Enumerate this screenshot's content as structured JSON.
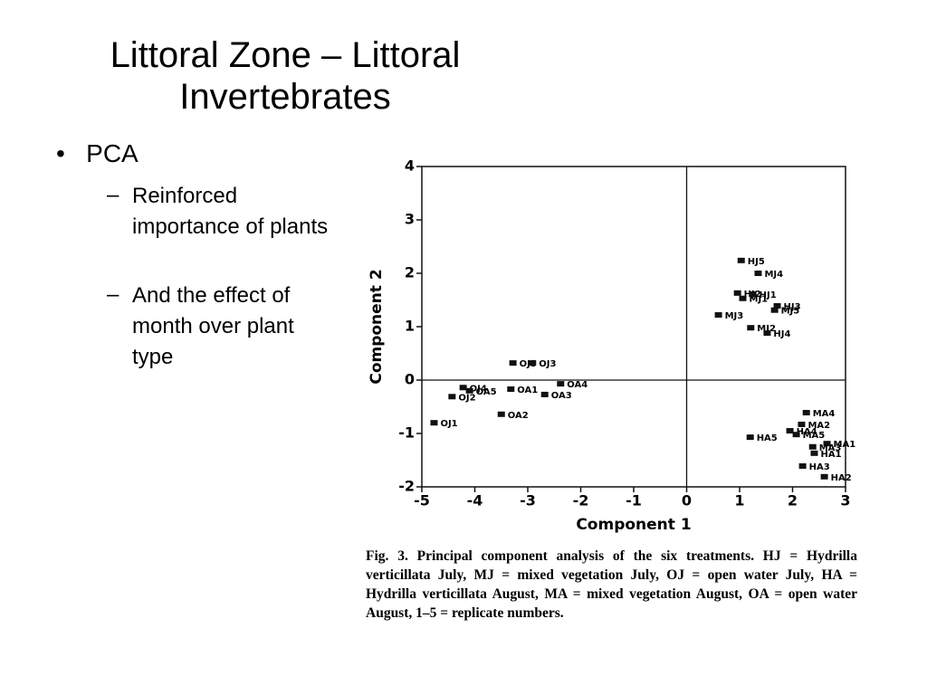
{
  "slide": {
    "title": [
      "Littoral Zone – Littoral",
      "Invertebrates"
    ],
    "bullet": "PCA",
    "sub_bullets": [
      "Reinforced importance of plants",
      "And the effect of month over plant type"
    ],
    "caption": "Fig. 3.   Principal component analysis of the six treatments. HJ = Hydrilla verticillata July, MJ = mixed vegetation July, OJ = open water July, HA = Hydrilla verticillata August, MA = mixed vegetation August, OA = open water August, 1–5 = replicate numbers."
  },
  "chart_data": {
    "type": "scatter",
    "xlabel": "Component 1",
    "ylabel": "Component 2",
    "xlim": [
      -5,
      3
    ],
    "ylim": [
      -2,
      4
    ],
    "xticks": [
      -5,
      -4,
      -3,
      -2,
      -1,
      0,
      1,
      2,
      3
    ],
    "yticks": [
      -2,
      -1,
      0,
      1,
      2,
      3,
      4
    ],
    "color": "#111111",
    "labels": [
      "HJ5",
      "MJ4",
      "HJ2",
      "MJ1",
      "HJ1",
      "HJ3",
      "MJ5",
      "MJ3",
      "MJ2",
      "HJ4",
      "OJ5",
      "OJ3",
      "OJ4",
      "OA1",
      "OA4",
      "OA3",
      "OJ2",
      "OA5",
      "OA2",
      "OJ1",
      "MA4",
      "MA2",
      "HA4",
      "MA5",
      "HA5",
      "MA1",
      "MA3",
      "HA1",
      "HA3",
      "HA2"
    ],
    "x": [
      1.03,
      1.35,
      0.96,
      1.06,
      1.25,
      1.71,
      1.66,
      0.6,
      1.21,
      1.52,
      -3.28,
      -2.91,
      -4.22,
      -3.32,
      -2.38,
      -2.68,
      -4.43,
      -4.1,
      -3.5,
      -4.77,
      2.26,
      2.17,
      1.95,
      2.07,
      1.2,
      2.65,
      2.38,
      2.41,
      2.19,
      2.6
    ],
    "y": [
      2.24,
      2.0,
      1.63,
      1.53,
      1.61,
      1.39,
      1.31,
      1.22,
      0.98,
      0.88,
      0.32,
      0.32,
      -0.14,
      -0.17,
      -0.07,
      -0.27,
      -0.31,
      -0.2,
      -0.64,
      -0.8,
      -0.61,
      -0.83,
      -0.95,
      -1.02,
      -1.07,
      -1.19,
      -1.25,
      -1.37,
      -1.61,
      -1.81
    ]
  }
}
